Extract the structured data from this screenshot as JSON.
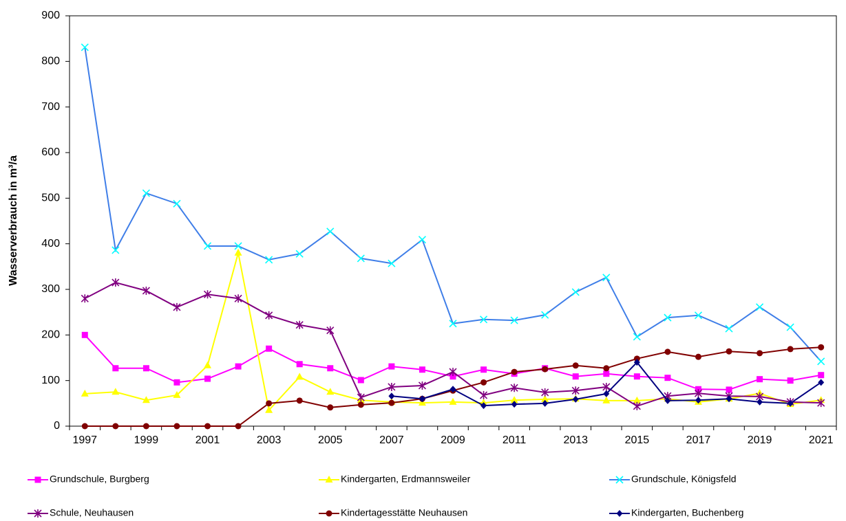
{
  "chart_data": {
    "type": "line",
    "y_label": "Wasserverbrauch in m³/a",
    "categories": [
      "1997",
      null,
      "1999",
      null,
      "2001",
      null,
      "2003",
      null,
      "2005",
      null,
      "2007",
      null,
      "2009",
      null,
      "2011",
      null,
      "2013",
      null,
      "2015",
      null,
      "2017",
      null,
      "2019",
      null,
      "2021"
    ],
    "ylim": [
      0,
      900
    ],
    "yticks": [
      0,
      100,
      200,
      300,
      400,
      500,
      600,
      700,
      800,
      900
    ],
    "series": [
      {
        "name": "Grundschule, Burgberg",
        "color": "#ff00ff",
        "line_color": "#ff00ff",
        "marker": "square",
        "values": [
          200,
          127,
          127,
          96,
          104,
          131,
          170,
          136,
          127,
          101,
          131,
          124,
          109,
          124,
          115,
          127,
          109,
          115,
          109,
          106,
          81,
          80,
          103,
          100,
          112
        ]
      },
      {
        "name": "Kindergarten, Erdmannsweiler",
        "color": "#ffff00",
        "line_color": "#ffff00",
        "marker": "triangle",
        "values": [
          71,
          75,
          57,
          68,
          133,
          380,
          35,
          108,
          75,
          57,
          53,
          51,
          53,
          51,
          57,
          59,
          60,
          56,
          56,
          60,
          53,
          60,
          72,
          48,
          57
        ]
      },
      {
        "name": "Grundschule, Königsfeld",
        "color": "#00ffff",
        "line_color": "#3f7ee8",
        "marker": "x",
        "values": [
          831,
          386,
          511,
          488,
          395,
          395,
          365,
          378,
          427,
          368,
          357,
          409,
          225,
          234,
          232,
          244,
          294,
          326,
          196,
          238,
          243,
          214,
          261,
          217,
          142
        ]
      },
      {
        "name": "Schule, Neuhausen",
        "color": "#800080",
        "line_color": "#800080",
        "marker": "star",
        "values": [
          280,
          315,
          297,
          261,
          289,
          280,
          243,
          222,
          210,
          63,
          86,
          89,
          119,
          68,
          84,
          74,
          78,
          86,
          44,
          66,
          72,
          66,
          65,
          53,
          51
        ]
      },
      {
        "name": "Kindertagesstätte Neuhausen",
        "color": "#800000",
        "line_color": "#800000",
        "marker": "circle",
        "values": [
          0,
          0,
          0,
          0,
          0,
          0,
          50,
          56,
          41,
          47,
          51,
          60,
          78,
          96,
          119,
          125,
          133,
          127,
          148,
          163,
          152,
          164,
          160,
          169,
          173
        ]
      },
      {
        "name": "Kindergarten, Buchenberg",
        "color": "#000080",
        "line_color": "#000080",
        "marker": "diamond",
        "values": [
          null,
          null,
          null,
          null,
          null,
          null,
          null,
          null,
          null,
          null,
          66,
          60,
          81,
          45,
          48,
          50,
          59,
          71,
          140,
          56,
          57,
          60,
          53,
          50,
          96
        ]
      }
    ]
  }
}
